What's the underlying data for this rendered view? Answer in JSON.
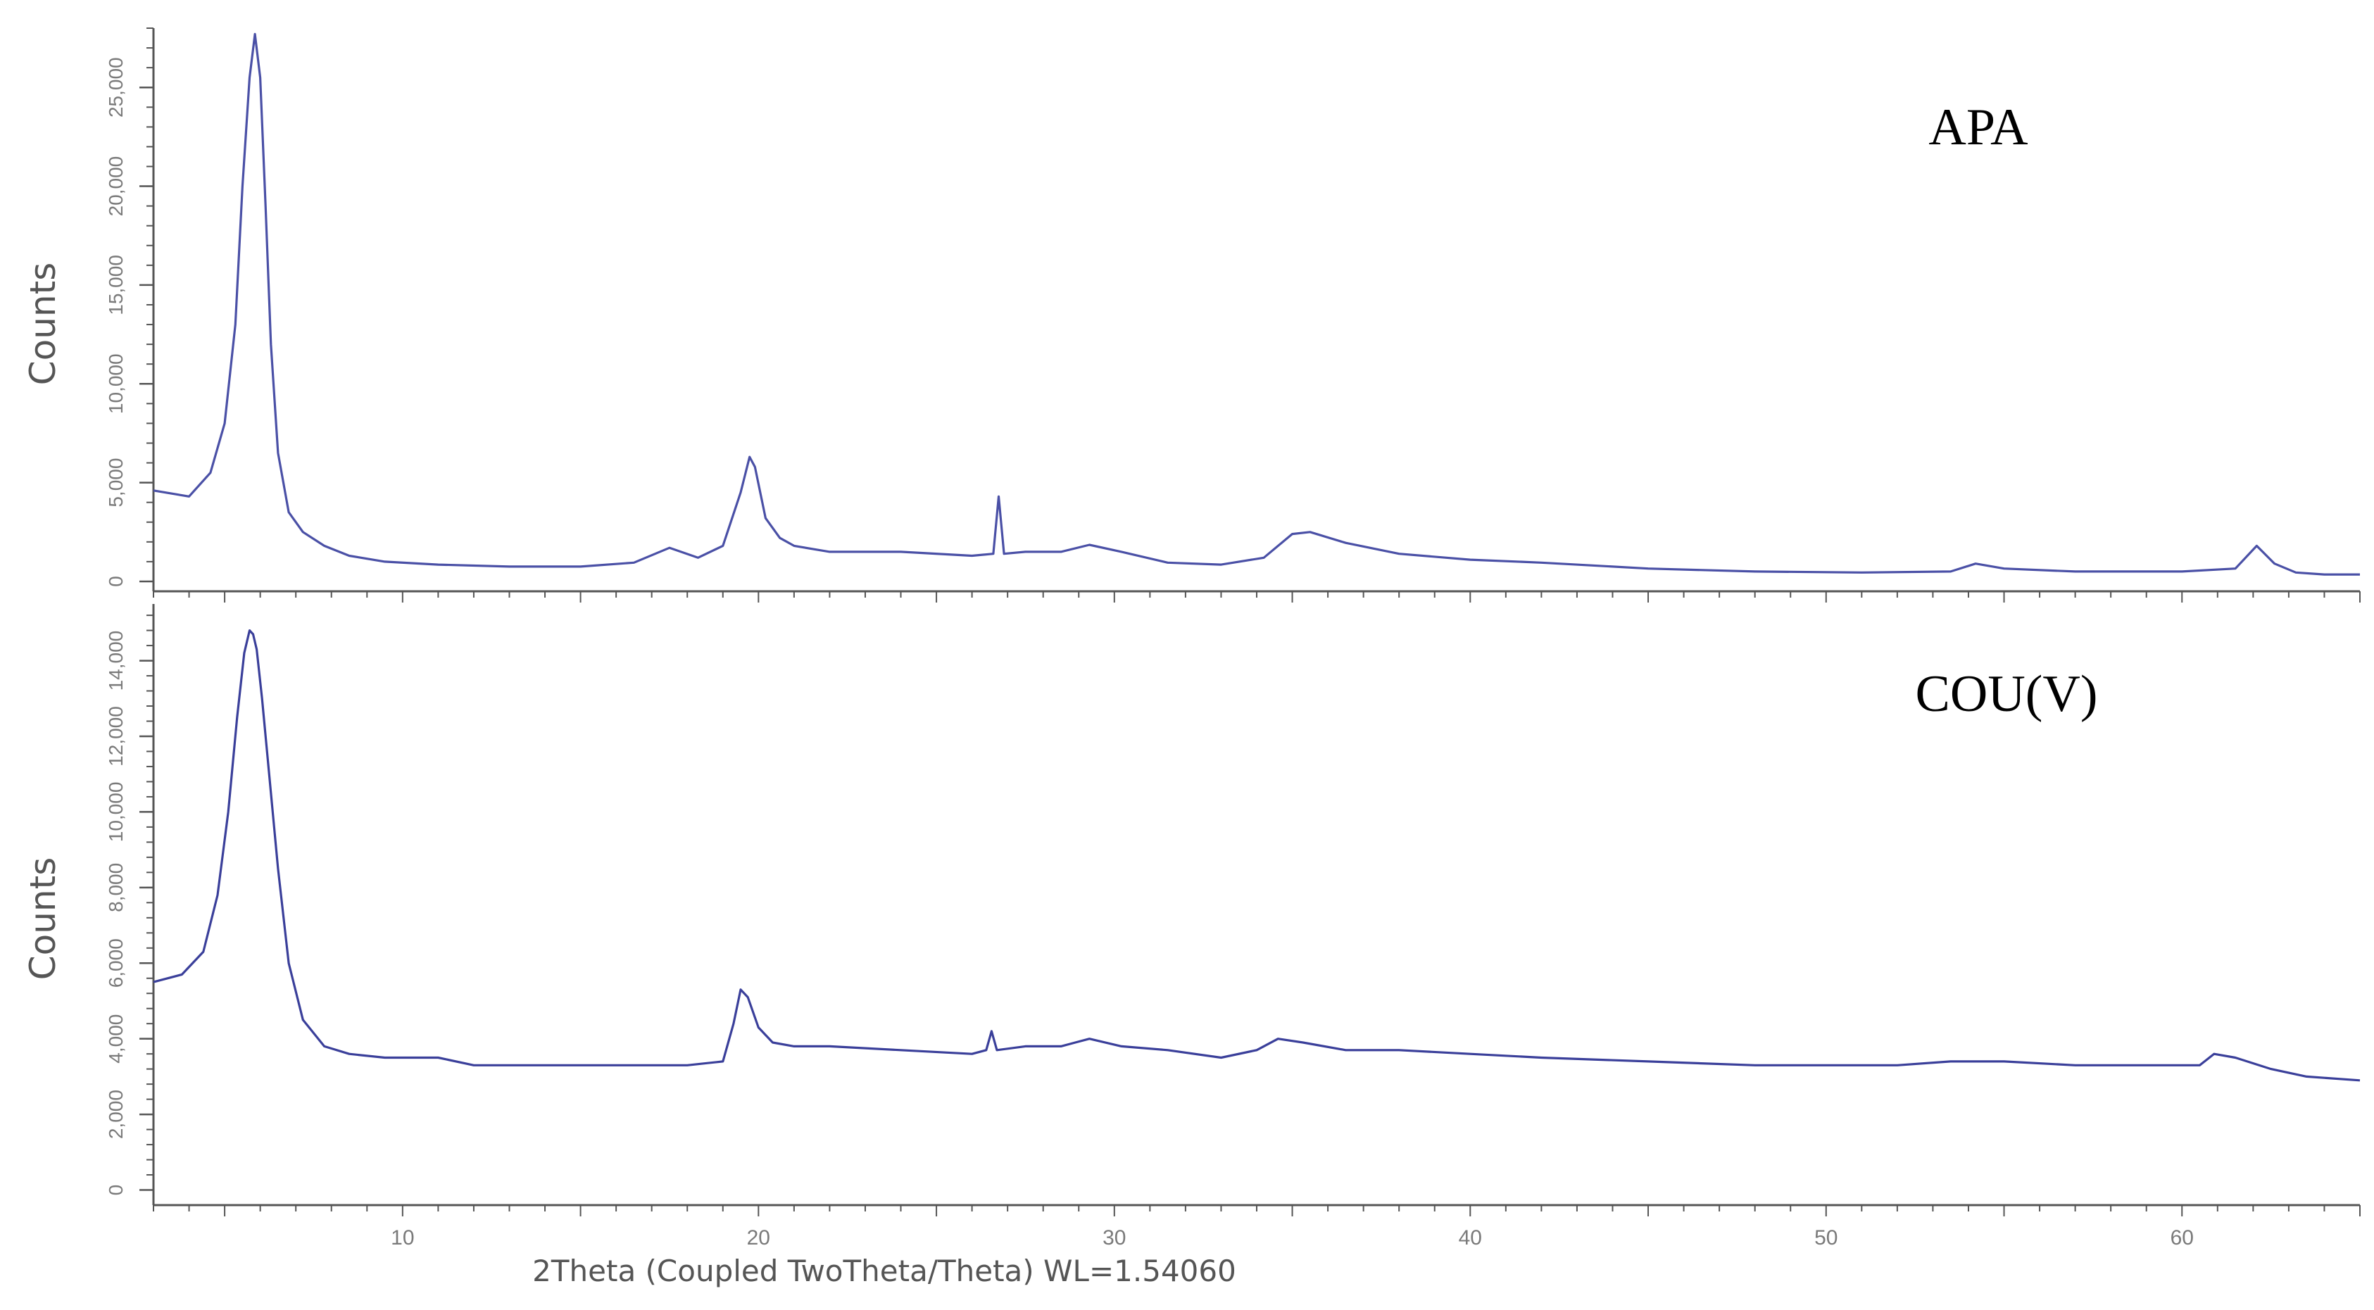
{
  "chart_data": [
    {
      "type": "line",
      "label": "APA",
      "ylabel": "Counts",
      "xlabel": "",
      "xlim": [
        3,
        65
      ],
      "ylim": [
        -500,
        28000
      ],
      "y_ticks": [
        0,
        5000,
        10000,
        15000,
        20000,
        25000
      ],
      "y_tick_labels": [
        "0",
        "5,000",
        "10,000",
        "15,000",
        "20,000",
        "25,000"
      ],
      "grid": false,
      "color": "#4a50a6",
      "series": [
        {
          "x": [
            3,
            4,
            4.6,
            5.0,
            5.3,
            5.5,
            5.7,
            5.85,
            6.0,
            6.15,
            6.3,
            6.5,
            6.8,
            7.2,
            7.8,
            8.5,
            9.5,
            11,
            13,
            15,
            16.5,
            17.5,
            18.3,
            19.0,
            19.5,
            19.75,
            19.9,
            20.2,
            20.6,
            21.0,
            22,
            24,
            26,
            26.6,
            26.75,
            26.9,
            27.5,
            28.5,
            29.3,
            30.2,
            31.5,
            33,
            34.2,
            35.0,
            35.5,
            36.5,
            38,
            40,
            42,
            45,
            48,
            51,
            53.5,
            54.2,
            55,
            57,
            60,
            61.5,
            62.1,
            62.6,
            63.2,
            64,
            65
          ],
          "y": [
            4600,
            4300,
            5500,
            8000,
            13000,
            20000,
            25500,
            27700,
            25500,
            19000,
            12000,
            6500,
            3500,
            2500,
            1800,
            1300,
            1000,
            850,
            750,
            750,
            950,
            1700,
            1200,
            1800,
            4500,
            6300,
            5800,
            3200,
            2200,
            1800,
            1500,
            1500,
            1300,
            1400,
            4300,
            1400,
            1500,
            1500,
            1850,
            1500,
            950,
            850,
            1200,
            2400,
            2500,
            1950,
            1400,
            1100,
            950,
            650,
            500,
            450,
            500,
            900,
            650,
            500,
            500,
            650,
            1800,
            900,
            450,
            350,
            350
          ]
        }
      ]
    },
    {
      "type": "line",
      "label": "COU(V)",
      "ylabel": "Counts",
      "xlabel": "2Theta (Coupled TwoTheta/Theta) WL=1.54060",
      "xlim": [
        3,
        65
      ],
      "ylim": [
        -400,
        15500
      ],
      "y_ticks": [
        0,
        2000,
        4000,
        6000,
        8000,
        10000,
        12000,
        14000
      ],
      "y_tick_labels": [
        "0",
        "2,000",
        "4,000",
        "6,000",
        "8,000",
        "10,000",
        "12,000",
        "14,000"
      ],
      "x_ticks": [
        10,
        20,
        30,
        40,
        50,
        60
      ],
      "x_tick_labels": [
        "10",
        "20",
        "30",
        "40",
        "50",
        "60"
      ],
      "grid": false,
      "color": "#3a3f9a",
      "series": [
        {
          "x": [
            3,
            3.8,
            4.4,
            4.8,
            5.1,
            5.35,
            5.55,
            5.7,
            5.8,
            5.9,
            6.05,
            6.25,
            6.5,
            6.8,
            7.2,
            7.8,
            8.5,
            9.5,
            11,
            12,
            14,
            16,
            18,
            19.0,
            19.3,
            19.5,
            19.7,
            20.0,
            20.4,
            21.0,
            22,
            24,
            26,
            26.4,
            26.55,
            26.7,
            27.5,
            28.5,
            29.3,
            30.2,
            31.5,
            33,
            34.0,
            34.6,
            35.3,
            36.5,
            38,
            40,
            42,
            45,
            48,
            50,
            52,
            53.5,
            55,
            57,
            59,
            60.5,
            60.9,
            61.5,
            62.5,
            63.5,
            65
          ],
          "y": [
            5500,
            5700,
            6300,
            7800,
            10000,
            12500,
            14200,
            14800,
            14700,
            14300,
            13000,
            11000,
            8500,
            6000,
            4500,
            3800,
            3600,
            3500,
            3500,
            3300,
            3300,
            3300,
            3300,
            3400,
            4400,
            5300,
            5100,
            4300,
            3900,
            3800,
            3800,
            3700,
            3600,
            3700,
            4200,
            3700,
            3800,
            3800,
            4000,
            3800,
            3700,
            3500,
            3700,
            4000,
            3900,
            3700,
            3700,
            3600,
            3500,
            3400,
            3300,
            3300,
            3300,
            3400,
            3400,
            3300,
            3300,
            3300,
            3600,
            3500,
            3200,
            3000,
            2900
          ]
        }
      ]
    }
  ]
}
